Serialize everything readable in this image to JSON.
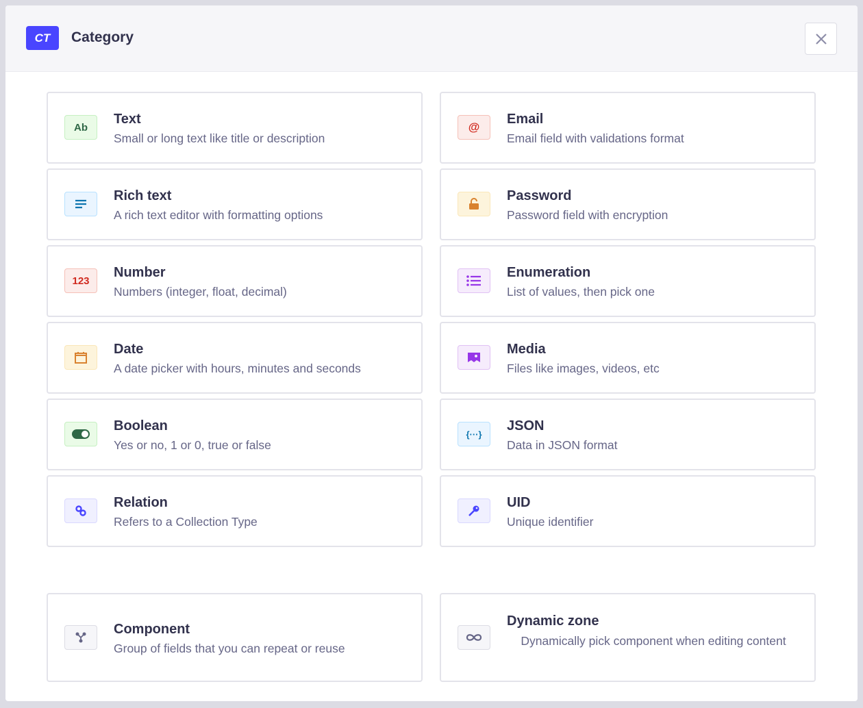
{
  "header": {
    "badge": "CT",
    "title": "Category",
    "close_icon": "close-icon"
  },
  "fields": [
    {
      "name": "Text",
      "desc": "Small or long text like title or description",
      "icon": "Ab",
      "bg": "#eafbe7",
      "border": "#c6f0c2",
      "color": "#2f6846"
    },
    {
      "name": "Email",
      "desc": "Email field with validations format",
      "icon": "@",
      "bg": "#fcecea",
      "border": "#f5c0b8",
      "color": "#d02b20"
    },
    {
      "name": "Rich text",
      "desc": "A rich text editor with formatting options",
      "icon": "text-lines-icon",
      "bg": "#eaf5ff",
      "border": "#b8e1ff",
      "color": "#0c75af"
    },
    {
      "name": "Password",
      "desc": "Password field with encryption",
      "icon": "lock-icon",
      "bg": "#fdf4dc",
      "border": "#fae7b9",
      "color": "#d9822f"
    },
    {
      "name": "Number",
      "desc": "Numbers (integer, float, decimal)",
      "icon": "123",
      "bg": "#fcecea",
      "border": "#f5c0b8",
      "color": "#d02b20"
    },
    {
      "name": "Enumeration",
      "desc": "List of values, then pick one",
      "icon": "list-icon",
      "bg": "#f6ecfc",
      "border": "#e0c1f4",
      "color": "#9736e8"
    },
    {
      "name": "Date",
      "desc": "A date picker with hours, minutes and seconds",
      "icon": "calendar-icon",
      "bg": "#fdf4dc",
      "border": "#fae7b9",
      "color": "#d9822f"
    },
    {
      "name": "Media",
      "desc": "Files like images, videos, etc",
      "icon": "image-icon",
      "bg": "#f6ecfc",
      "border": "#e0c1f4",
      "color": "#9736e8"
    },
    {
      "name": "Boolean",
      "desc": "Yes or no, 1 or 0, true or false",
      "icon": "toggle-icon",
      "bg": "#eafbe7",
      "border": "#c6f0c2",
      "color": "#2f6846"
    },
    {
      "name": "JSON",
      "desc": "Data in JSON format",
      "icon": "{···}",
      "bg": "#eaf5ff",
      "border": "#b8e1ff",
      "color": "#0c75af"
    },
    {
      "name": "Relation",
      "desc": "Refers to a Collection Type",
      "icon": "link-icon",
      "bg": "#f0f0ff",
      "border": "#d9d8ff",
      "color": "#4945ff"
    },
    {
      "name": "UID",
      "desc": "Unique identifier",
      "icon": "key-icon",
      "bg": "#f0f0ff",
      "border": "#d9d8ff",
      "color": "#4945ff"
    }
  ],
  "component": {
    "name": "Component",
    "desc": "Group of fields that you can repeat or reuse",
    "icon": "component-icon"
  },
  "dynamic_zone": {
    "name": "Dynamic zone",
    "desc": "Dynamically pick component when editing content",
    "icon": "infinity-icon"
  }
}
